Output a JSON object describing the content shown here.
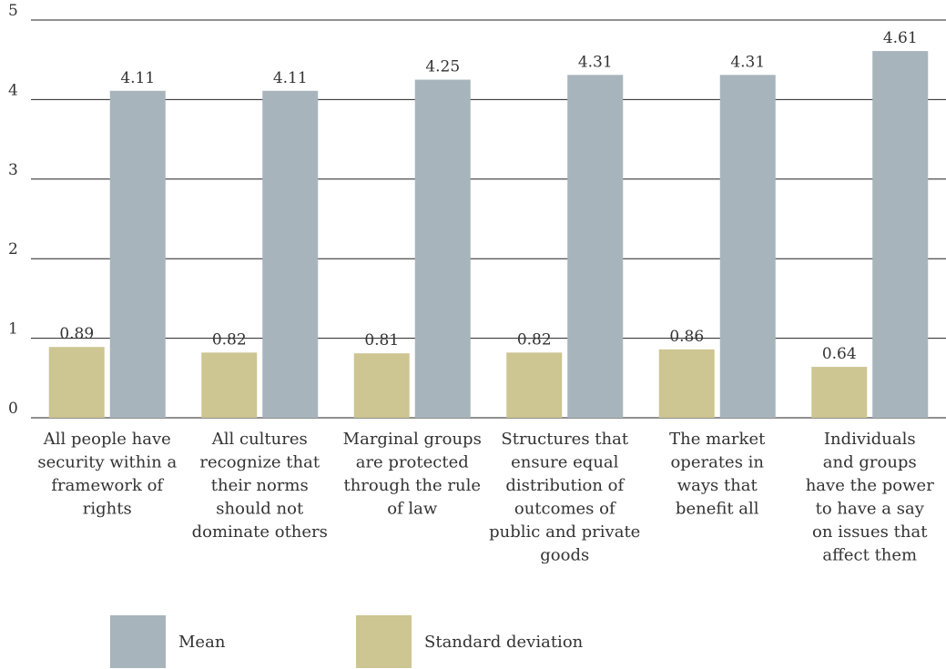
{
  "chart_data": {
    "type": "bar",
    "categories": [
      [
        "All people have",
        "security within a",
        "framework of",
        "rights"
      ],
      [
        "All cultures",
        "recognize that",
        "their norms",
        "should not",
        "dominate others"
      ],
      [
        "Marginal groups",
        "are protected",
        "through the rule",
        "of law"
      ],
      [
        "Structures that",
        "ensure equal",
        "distribution of",
        "outcomes of",
        "public and private",
        "goods"
      ],
      [
        "The market",
        "operates in",
        "ways that",
        "benefit all"
      ],
      [
        "Individuals",
        "and groups",
        "have the power",
        "to have a say",
        "on issues that",
        "affect them"
      ]
    ],
    "series": [
      {
        "name": "Standard deviation",
        "color": "#cdc592",
        "values": [
          0.89,
          0.82,
          0.81,
          0.82,
          0.86,
          0.64
        ]
      },
      {
        "name": "Mean",
        "color": "#a7b4bc",
        "values": [
          4.11,
          4.11,
          4.25,
          4.31,
          4.31,
          4.61
        ]
      }
    ],
    "ylim": [
      0,
      5
    ],
    "yticks": [
      "0",
      "1",
      "2",
      "3",
      "4",
      "5"
    ],
    "grid": true,
    "legend_position": "bottom",
    "legend": [
      {
        "label": "Mean",
        "color": "#a7b4bc"
      },
      {
        "label": "Standard deviation",
        "color": "#cdc592"
      }
    ]
  }
}
